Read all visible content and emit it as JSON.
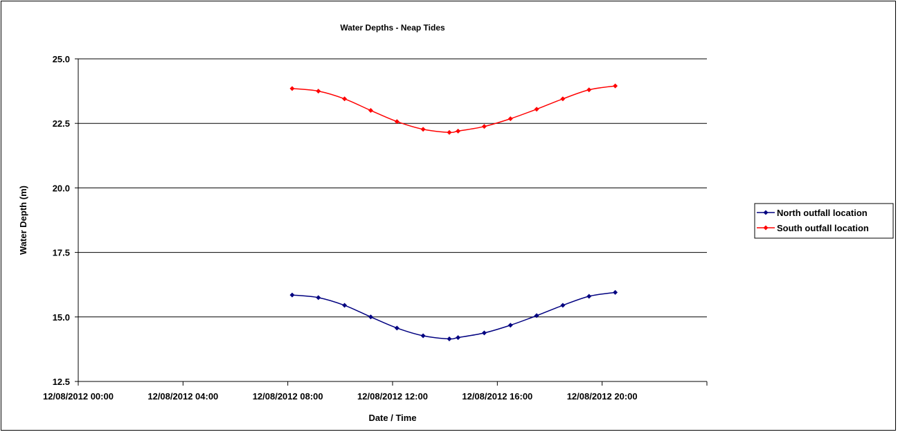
{
  "chart_data": {
    "type": "line",
    "title": "Water Depths - Neap Tides",
    "xlabel": "Date / Time",
    "ylabel": "Water Depth (m)",
    "ylim": [
      12.5,
      25.0
    ],
    "yticks": [
      "12.5",
      "15.0",
      "17.5",
      "20.0",
      "22.5",
      "25.0"
    ],
    "xlim": [
      "12/08/2012 00:00",
      "12/08/2012 24:00"
    ],
    "xtick_labels": [
      "12/08/2012 00:00",
      "12/08/2012 04:00",
      "12/08/2012 08:00",
      "12/08/2012 12:00",
      "12/08/2012 16:00",
      "12/08/2012 20:00"
    ],
    "grid": "horizontal major gridlines",
    "legend_position": "right",
    "x": [
      "12/08/2012 08:10",
      "12/08/2012 09:10",
      "12/08/2012 10:10",
      "12/08/2012 11:10",
      "12/08/2012 12:10",
      "12/08/2012 13:10",
      "12/08/2012 14:10",
      "12/08/2012 14:30",
      "12/08/2012 15:30",
      "12/08/2012 16:30",
      "12/08/2012 17:30",
      "12/08/2012 18:30",
      "12/08/2012 19:30",
      "12/08/2012 20:30"
    ],
    "series": [
      {
        "name": "North outfall location",
        "color": "#000080",
        "marker": "diamond",
        "values": [
          15.85,
          15.75,
          15.45,
          15.0,
          14.57,
          14.27,
          14.15,
          14.2,
          14.38,
          14.68,
          15.05,
          15.45,
          15.8,
          15.95
        ]
      },
      {
        "name": "South outfall location",
        "color": "#ff0000",
        "marker": "diamond",
        "values": [
          23.85,
          23.75,
          23.45,
          23.0,
          22.57,
          22.27,
          22.15,
          22.2,
          22.38,
          22.68,
          23.05,
          23.45,
          23.8,
          23.95
        ]
      }
    ]
  }
}
